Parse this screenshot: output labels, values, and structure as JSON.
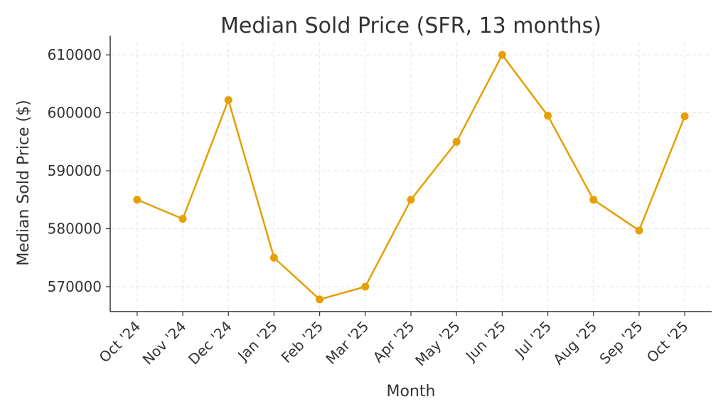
{
  "chart_data": {
    "type": "line",
    "title": "Median Sold Price (SFR, 13 months)",
    "xlabel": "Month",
    "ylabel": "Median Sold Price ($)",
    "categories": [
      "Oct '24",
      "Nov '24",
      "Dec '24",
      "Jan '25",
      "Feb '25",
      "Mar '25",
      "Apr '25",
      "May '25",
      "Jun '25",
      "Jul '25",
      "Aug '25",
      "Sep '25",
      "Oct '25"
    ],
    "series": [
      {
        "values": [
          585000,
          581700,
          602200,
          575000,
          567800,
          570000,
          585000,
          595000,
          610000,
          599500,
          585000,
          579700,
          599400
        ]
      }
    ],
    "yticks": [
      570000,
      580000,
      590000,
      600000,
      610000
    ],
    "ytick_labels": [
      "570000",
      "580000",
      "590000",
      "600000",
      "610000"
    ],
    "ylim": [
      565700,
      612100
    ],
    "grid": true,
    "line_color": "#E69F00",
    "marker": "circle"
  }
}
